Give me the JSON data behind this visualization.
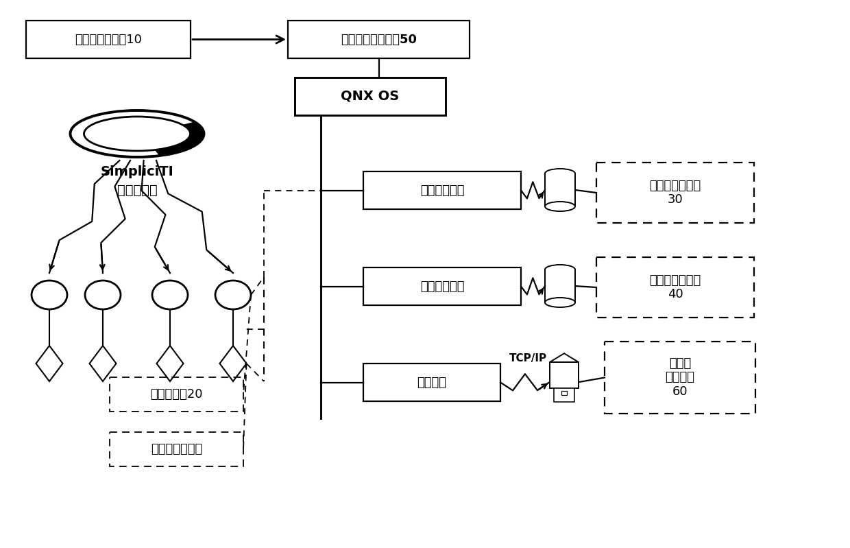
{
  "bg_color": "#ffffff",
  "wlan_text": "无线网络控制器10",
  "backup_text": "数据备份主控制器50",
  "qnx_text": "QNX OS",
  "proc1_text": "数据日志进程",
  "proc2_text": "增量日志进程",
  "proc3_text": "备份进程",
  "store1_text": "数据日志存储器\n30",
  "store2_text": "增量日志存储器\n40",
  "sense_text": "感知层\n控制中心\n60",
  "sensor20_text": "无线传感器20",
  "sensornode_text": "无线传感器节点",
  "simpliciti1": "SimpliciTI",
  "simpliciti2": "无线传感网",
  "tcpip_text": "TCP/IP",
  "lw": 1.6
}
